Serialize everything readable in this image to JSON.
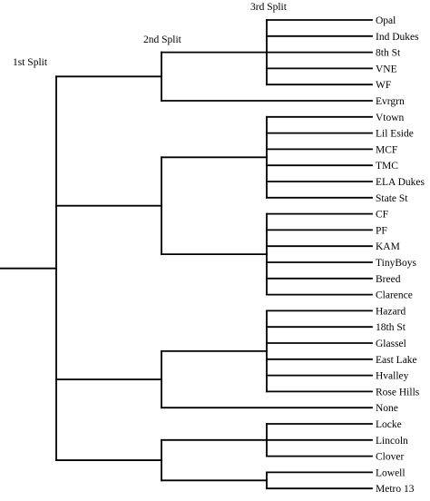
{
  "split_labels": {
    "first": "1st Split",
    "second": "2nd Split",
    "third": "3rd Split"
  },
  "leaves": [
    "Opal",
    "Ind Dukes",
    "8th St",
    "VNE",
    "WF",
    "Evrgrn",
    "Vtown",
    "Lil Eside",
    "MCF",
    "TMC",
    "ELA Dukes",
    "State St",
    "CF",
    "PF",
    "KAM",
    "TinyBoys",
    "Breed",
    "Clarence",
    "Hazard",
    "18th St",
    "Glassel",
    "East Lake",
    "Hvalley",
    "Rose Hills",
    "None",
    "Locke",
    "Lincoln",
    "Clover",
    "Lowell",
    "Metro 13"
  ],
  "tree": {
    "children": [
      {
        "children": [
          {
            "children": [
              {
                "leaf": "Opal"
              },
              {
                "leaf": "Ind Dukes"
              },
              {
                "leaf": "8th St"
              },
              {
                "leaf": "VNE"
              },
              {
                "leaf": "WF"
              }
            ]
          },
          {
            "leaf": "Evrgrn"
          }
        ]
      },
      {
        "children": [
          {
            "children": [
              {
                "leaf": "Vtown"
              },
              {
                "leaf": "Lil Eside"
              },
              {
                "leaf": "MCF"
              },
              {
                "leaf": "TMC"
              },
              {
                "leaf": "ELA Dukes"
              },
              {
                "leaf": "State St"
              }
            ]
          },
          {
            "children": [
              {
                "leaf": "CF"
              },
              {
                "leaf": "PF"
              },
              {
                "leaf": "KAM"
              },
              {
                "leaf": "TinyBoys"
              },
              {
                "leaf": "Breed"
              },
              {
                "leaf": "Clarence"
              }
            ]
          }
        ]
      },
      {
        "children": [
          {
            "children": [
              {
                "leaf": "Hazard"
              },
              {
                "leaf": "18th St"
              },
              {
                "leaf": "Glassel"
              },
              {
                "leaf": "East Lake"
              },
              {
                "leaf": "Hvalley"
              },
              {
                "leaf": "Rose Hills"
              }
            ]
          },
          {
            "leaf": "None"
          }
        ]
      },
      {
        "children": [
          {
            "children": [
              {
                "leaf": "Locke"
              },
              {
                "leaf": "Lincoln"
              },
              {
                "leaf": "Clover"
              }
            ]
          },
          {
            "children": [
              {
                "leaf": "Lowell"
              },
              {
                "leaf": "Metro 13"
              }
            ]
          }
        ]
      }
    ]
  }
}
